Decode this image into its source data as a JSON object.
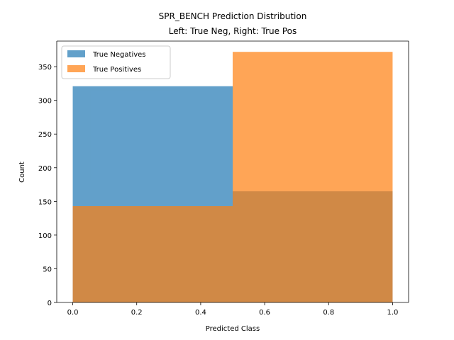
{
  "chart_data": {
    "type": "bar",
    "title_line1": "SPR_BENCH Prediction Distribution",
    "title_line2": "Left: True Neg, Right: True Pos",
    "xlabel": "Predicted Class",
    "ylabel": "Count",
    "xlim": [
      -0.05,
      1.05
    ],
    "ylim": [
      0,
      388
    ],
    "xticks": [
      0.0,
      0.2,
      0.4,
      0.6,
      0.8,
      1.0
    ],
    "xtick_labels": [
      "0.0",
      "0.2",
      "0.4",
      "0.6",
      "0.8",
      "1.0"
    ],
    "yticks": [
      0,
      50,
      100,
      150,
      200,
      250,
      300,
      350
    ],
    "ytick_labels": [
      "0",
      "50",
      "100",
      "150",
      "200",
      "250",
      "300",
      "350"
    ],
    "bin_edges": [
      0.0,
      0.5,
      1.0
    ],
    "series": [
      {
        "name": "True Negatives",
        "color": "#1f77b4",
        "opacity": 0.7,
        "values": [
          321,
          165
        ]
      },
      {
        "name": "True Positives",
        "color": "#ff7f0e",
        "opacity": 0.7,
        "values": [
          143,
          372
        ]
      }
    ],
    "legend_position": "upper-left",
    "grid": false
  }
}
